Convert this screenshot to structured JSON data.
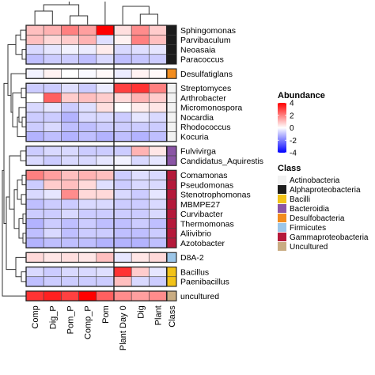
{
  "chart_data": {
    "type": "heatmap",
    "columns": [
      "Comp",
      "Dig_P",
      "Pom_P",
      "Comp_P",
      "Pom",
      "Plant Day 0",
      "Dig",
      "Plant"
    ],
    "class_column_label": "Class",
    "rows": [
      {
        "label": "Sphingomonas",
        "cls": "Alphaproteobacteria",
        "values": [
          1.0,
          1.2,
          2.0,
          1.5,
          4.0,
          0.5,
          1.8,
          0.8
        ]
      },
      {
        "label": "Parvibaculum",
        "cls": "Alphaproteobacteria",
        "values": [
          1.0,
          0.6,
          0.8,
          1.2,
          -0.5,
          0.2,
          2.0,
          1.0
        ]
      },
      {
        "label": "Neoasaia",
        "cls": "Alphaproteobacteria",
        "values": [
          -0.6,
          -0.4,
          -0.2,
          -0.3,
          0.3,
          -0.6,
          -0.5,
          -0.4
        ]
      },
      {
        "label": "Paracoccus",
        "cls": "Alphaproteobacteria",
        "values": [
          -1.0,
          -0.8,
          -0.8,
          -1.0,
          -0.6,
          -1.0,
          -0.9,
          -0.8
        ]
      },
      {
        "label": "Desulfatiglans",
        "cls": "Desulfobacteria",
        "values": [
          -0.2,
          0.2,
          0.0,
          -0.1,
          0.1,
          -0.3,
          0.2,
          0.1
        ]
      },
      {
        "label": "Streptomyces",
        "cls": "Actinobacteria",
        "values": [
          -0.8,
          -0.8,
          -0.5,
          -0.8,
          -0.3,
          3.0,
          3.2,
          2.0
        ]
      },
      {
        "label": "Arthrobacter",
        "cls": "Actinobacteria",
        "values": [
          0.0,
          2.5,
          0.8,
          1.0,
          0.8,
          0.6,
          1.2,
          0.8
        ]
      },
      {
        "label": "Micromonospora",
        "cls": "Actinobacteria",
        "values": [
          -0.6,
          -0.4,
          -0.8,
          -0.5,
          0.5,
          0.0,
          0.3,
          0.4
        ]
      },
      {
        "label": "Nocardia",
        "cls": "Actinobacteria",
        "values": [
          -0.8,
          -0.8,
          -1.2,
          -0.6,
          -0.6,
          -0.8,
          -0.4,
          -0.6
        ]
      },
      {
        "label": "Rhodococcus",
        "cls": "Actinobacteria",
        "values": [
          -0.8,
          -0.6,
          -1.0,
          -1.0,
          -0.8,
          -0.8,
          -0.8,
          -0.8
        ]
      },
      {
        "label": "Kocuria",
        "cls": "Actinobacteria",
        "values": [
          -1.2,
          -1.0,
          -1.2,
          -1.0,
          -1.2,
          -1.0,
          -1.2,
          -1.0
        ]
      },
      {
        "label": "Fulvivirga",
        "cls": "Bacteroidia",
        "values": [
          -0.8,
          -0.6,
          -0.6,
          -0.8,
          -0.8,
          -0.8,
          1.2,
          0.4
        ]
      },
      {
        "label": "Candidatus_Aquirestis",
        "cls": "Bacteroidia",
        "values": [
          -0.6,
          -0.8,
          -0.6,
          -0.6,
          -0.4,
          -0.2,
          -0.6,
          -0.4
        ]
      },
      {
        "label": "Comamonas",
        "cls": "Gammaproteobacteria",
        "values": [
          2.0,
          1.5,
          1.0,
          1.2,
          1.0,
          -0.8,
          -0.5,
          -0.6
        ]
      },
      {
        "label": "Pseudomonas",
        "cls": "Gammaproteobacteria",
        "values": [
          -0.8,
          0.8,
          1.0,
          0.6,
          -0.5,
          -0.8,
          -0.6,
          -0.6
        ]
      },
      {
        "label": "Stenotrophomonas",
        "cls": "Gammaproteobacteria",
        "values": [
          -0.6,
          -0.4,
          1.8,
          0.6,
          0.6,
          -0.6,
          -0.8,
          -0.4
        ]
      },
      {
        "label": "MBMPE27",
        "cls": "Gammaproteobacteria",
        "values": [
          -1.0,
          -0.8,
          -0.8,
          -0.6,
          -0.6,
          -0.8,
          -0.8,
          -0.6
        ]
      },
      {
        "label": "Curvibacter",
        "cls": "Gammaproteobacteria",
        "values": [
          -0.8,
          -0.8,
          -0.6,
          -0.8,
          -0.8,
          -0.8,
          -0.8,
          -0.6
        ]
      },
      {
        "label": "Thermomonas",
        "cls": "Gammaproteobacteria",
        "values": [
          -1.2,
          -0.8,
          -1.0,
          -0.8,
          -1.0,
          -1.0,
          -0.8,
          -1.0
        ]
      },
      {
        "label": "Aliivibrio",
        "cls": "Gammaproteobacteria",
        "values": [
          -1.0,
          -0.6,
          -1.0,
          -0.8,
          -0.8,
          -1.0,
          -1.0,
          -0.8
        ]
      },
      {
        "label": "Azotobacter",
        "cls": "Gammaproteobacteria",
        "values": [
          -1.2,
          -1.0,
          -1.0,
          -1.0,
          -1.2,
          -1.2,
          -1.2,
          -1.0
        ]
      },
      {
        "label": "D8A-2",
        "cls": "Firmicutes",
        "values": [
          0.6,
          0.4,
          0.5,
          0.4,
          1.0,
          -0.4,
          0.4,
          0.6
        ]
      },
      {
        "label": "Bacillus",
        "cls": "Bacilli",
        "values": [
          -0.6,
          -0.8,
          -0.6,
          -0.6,
          -0.5,
          3.2,
          0.8,
          -0.4
        ]
      },
      {
        "label": "Paenibacillus",
        "cls": "Bacilli",
        "values": [
          -1.0,
          -0.8,
          -0.8,
          -0.8,
          -0.8,
          1.0,
          -0.6,
          -0.8
        ]
      },
      {
        "label": "uncultured",
        "cls": "Uncultured",
        "values": [
          3.2,
          3.5,
          3.0,
          4.0,
          2.5,
          1.8,
          1.5,
          1.8
        ]
      }
    ],
    "row_groups": [
      4,
      1,
      6,
      2,
      8,
      1,
      2,
      1
    ],
    "scale": {
      "title": "Abundance",
      "min": -4,
      "max": 4,
      "ticks": [
        4,
        2,
        0,
        -2,
        -4
      ],
      "low_color": "#0000ff",
      "mid_color": "#ffffff",
      "high_color": "#ff0000"
    },
    "class_legend": {
      "title": "Class",
      "items": [
        {
          "name": "Actinobacteria",
          "color": "#f2f2f2"
        },
        {
          "name": "Alphaproteobacteria",
          "color": "#1c1c1c"
        },
        {
          "name": "Bacilli",
          "color": "#f2c318"
        },
        {
          "name": "Bacteroidia",
          "color": "#8a55a5"
        },
        {
          "name": "Desulfobacteria",
          "color": "#f28c1e"
        },
        {
          "name": "Firmicutes",
          "color": "#9cc6e8"
        },
        {
          "name": "Gammaproteobacteria",
          "color": "#b5193a"
        },
        {
          "name": "Uncultured",
          "color": "#c9ac82"
        }
      ]
    }
  }
}
